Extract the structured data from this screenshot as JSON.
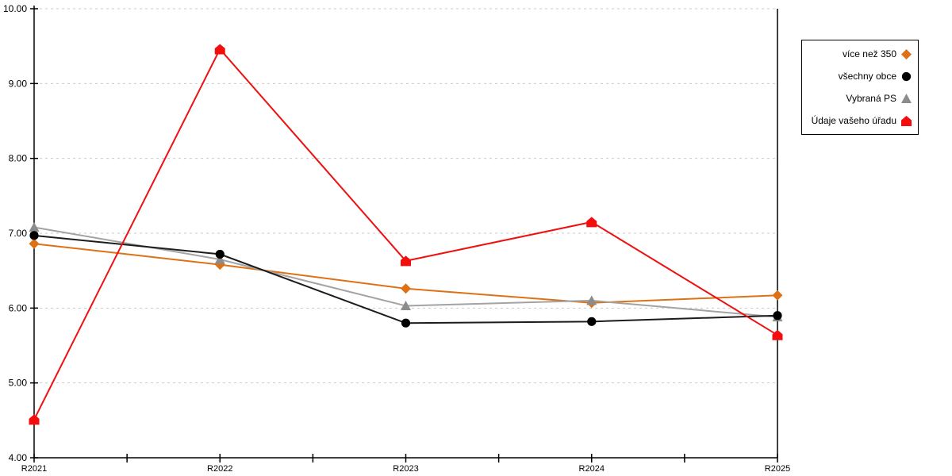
{
  "chart_data": {
    "type": "line",
    "title": "",
    "xlabel": "",
    "ylabel": "",
    "categories": [
      "R2021",
      "R2022",
      "R2023",
      "R2024",
      "R2025"
    ],
    "series": [
      {
        "name": "více než 350",
        "marker": "diamond",
        "line_color": "#DE7015",
        "marker_color": "#DE7015",
        "values": [
          6.86,
          6.58,
          6.26,
          6.07,
          6.17
        ]
      },
      {
        "name": "všechny obce",
        "marker": "circle",
        "line_color": "#1C1C1C",
        "marker_color": "#000000",
        "values": [
          6.97,
          6.72,
          5.8,
          5.82,
          5.9
        ]
      },
      {
        "name": "Vybraná PS",
        "marker": "triangle",
        "line_color": "#A3A3A3",
        "marker_color": "#8C8C8C",
        "values": [
          7.08,
          6.65,
          6.03,
          6.1,
          5.88
        ]
      },
      {
        "name": "Údaje vašeho úřadu",
        "marker": "pentagon",
        "line_color": "#EE1111",
        "marker_color": "#F40D0D",
        "values": [
          4.51,
          9.46,
          6.63,
          7.15,
          5.64
        ]
      }
    ],
    "draw_order": [
      0,
      2,
      1,
      3
    ],
    "ylim": [
      4,
      10
    ],
    "ytick_step": 1,
    "ytick_labels": [
      "4.00",
      "5.00",
      "6.00",
      "7.00",
      "8.00",
      "9.00",
      "10.00"
    ],
    "grid": "horizontal-dashed",
    "minor_x_ticks": true,
    "legend_position": "top-right",
    "style": {
      "background": "#ffffff",
      "grid_color": "#c9c9c9",
      "axis_color": "#000000",
      "legend_border": "#000000"
    }
  }
}
